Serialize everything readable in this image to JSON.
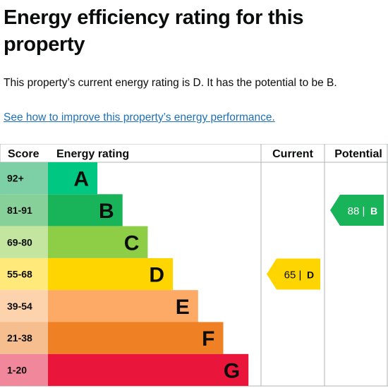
{
  "page": {
    "title": "Energy efficiency rating for this property",
    "summary": "This property’s current energy rating is D. It has the potential to be B.",
    "improve_link": "See how to improve this property’s energy performance."
  },
  "chart_data": {
    "type": "bar",
    "headers": {
      "score": "Score",
      "rating": "Energy rating",
      "current": "Current",
      "potential": "Potential"
    },
    "bands": [
      {
        "score": "92+",
        "letter": "A",
        "level": 1,
        "color": "#00c781",
        "score_bg": "#7dcfa6"
      },
      {
        "score": "81-91",
        "letter": "B",
        "level": 2,
        "color": "#19b459",
        "score_bg": "#88d09a"
      },
      {
        "score": "69-80",
        "letter": "C",
        "level": 3,
        "color": "#8dce46",
        "score_bg": "#c4e59f"
      },
      {
        "score": "55-68",
        "letter": "D",
        "level": 4,
        "color": "#ffd500",
        "score_bg": "#ffe97a"
      },
      {
        "score": "39-54",
        "letter": "E",
        "level": 5,
        "color": "#fcaa65",
        "score_bg": "#fdd3ae"
      },
      {
        "score": "21-38",
        "letter": "F",
        "level": 6,
        "color": "#ef8023",
        "score_bg": "#f6bd8f"
      },
      {
        "score": "1-20",
        "letter": "G",
        "level": 7,
        "color": "#e9153b",
        "score_bg": "#f1879a"
      }
    ],
    "current": {
      "value": 65,
      "letter": "D",
      "label": "65 |",
      "color": "#ffd500"
    },
    "potential": {
      "value": 88,
      "letter": "B",
      "label": "88 |",
      "color": "#19b459"
    }
  }
}
